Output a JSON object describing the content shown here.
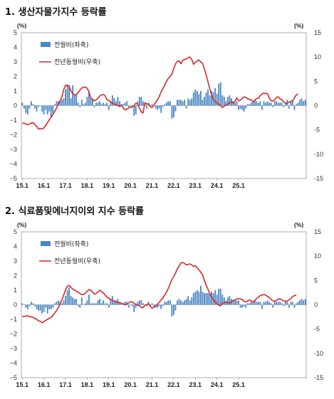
{
  "chart_data": [
    {
      "type": "bar+line",
      "title": "1. 생산자물가지수 등락률",
      "left_unit": "(%)",
      "right_unit": "(%)",
      "left_axis": {
        "ylim": [
          -5,
          5
        ],
        "ticks": [
          "5",
          "4",
          "3",
          "2",
          "1",
          "0",
          "−1",
          "−2",
          "−3",
          "−4",
          "−5"
        ]
      },
      "right_axis": {
        "ylim": [
          -15,
          15
        ],
        "ticks": [
          "15",
          "10",
          "5",
          "0",
          "-5",
          "-10",
          "-15"
        ]
      },
      "x_ticks": [
        "15.1",
        "16.1",
        "17.1",
        "18.1",
        "19.1",
        "20.1",
        "21.1",
        "22.1",
        "23.1",
        "24.1",
        "25.1"
      ],
      "series": [
        {
          "name": "전월비(좌축)",
          "type": "bar",
          "axis": "left",
          "color": "#4a86c5",
          "values": [
            0.2,
            -0.2,
            -0.5,
            -0.6,
            -0.2,
            0.3,
            0.1,
            -0.2,
            -0.4,
            -0.1,
            0.0,
            -0.4,
            -0.6,
            -0.3,
            -0.6,
            -0.4,
            -0.8,
            -0.5,
            0.1,
            0.3,
            0.3,
            0.3,
            0.4,
            0.5,
            1.1,
            1.4,
            1.4,
            0.5,
            1.4,
            0.7,
            0.8,
            0.2,
            -0.1,
            0.4,
            0.1,
            0.2,
            0.6,
            1.0,
            0.5,
            0.4,
            -0.1,
            0.2,
            0.2,
            0.3,
            0.1,
            0.2,
            0.1,
            0.2,
            -0.3,
            0.3,
            0.7,
            0.5,
            0.3,
            0.6,
            0.3,
            0.1,
            0.1,
            0.2,
            0.3,
            -0.1,
            0.0,
            -0.1,
            -0.7,
            -0.6,
            0.3,
            0.6,
            0.6,
            0.3,
            0.1,
            -0.2,
            0.2,
            -0.1,
            0.1,
            0.0,
            -0.2,
            -0.3,
            -0.2,
            -0.5,
            -0.1,
            0.1,
            0.2,
            0.3,
            0.3,
            -0.9,
            -0.8,
            -0.4,
            0.4,
            0.4,
            0.4,
            0.3,
            0.4,
            -0.2,
            0.5,
            0.4,
            0.5,
            0.9,
            1.1,
            1.0,
            0.8,
            1.0,
            0.4,
            0.6,
            0.9,
            1.1,
            0.7,
            1.0,
            0.9,
            1.2,
            0.8,
            1.5,
            1.6,
            0.7,
            0.6,
            0.3,
            0.6,
            0.7,
            0.5,
            0.3,
            0.2,
            0.3,
            -0.3,
            -0.2,
            -0.3,
            -0.4,
            -0.2,
            0.1,
            0.1,
            0.2,
            0.3,
            0.4,
            0.3,
            0.2,
            0.3,
            -0.3,
            0.3,
            0.2,
            0.3,
            0.2,
            0.2,
            -0.1,
            0.3,
            0.3,
            0.2,
            0.2,
            0.2,
            -0.1,
            0.2,
            0.4,
            -0.2,
            0.3,
            0.3,
            -0.3,
            0.1,
            0.2,
            0.4,
            0.5,
            0.3,
            0.4
          ]
        },
        {
          "name": "전년동월비(우축)",
          "type": "line",
          "axis": "right",
          "color": "#d62828",
          "values": [
            -3.6,
            -3.6,
            -3.8,
            -3.9,
            -3.8,
            -3.6,
            -3.5,
            -3.9,
            -4.3,
            -4.8,
            -4.7,
            -4.8,
            -4.6,
            -4.1,
            -3.5,
            -2.9,
            -2.4,
            -1.8,
            -1.2,
            -0.5,
            0.3,
            1.0,
            1.8,
            3.3,
            4.2,
            4.2,
            4.0,
            3.0,
            2.5,
            2.2,
            2.3,
            2.7,
            3.2,
            3.6,
            3.8,
            3.8,
            3.6,
            2.8,
            1.6,
            1.3,
            1.0,
            1.2,
            1.5,
            2.0,
            2.2,
            2.3,
            2.0,
            1.2,
            1.1,
            0.8,
            0.5,
            0.3,
            0.2,
            0.0,
            -0.2,
            0.1,
            -0.5,
            -0.9,
            -0.7,
            -0.5,
            -0.3,
            -0.3,
            0.0,
            0.5,
            0.3,
            -0.5,
            -1.3,
            -1.5,
            0.6,
            0.3,
            0.4,
            -0.2,
            -0.4,
            0.1,
            0.6,
            1.2,
            1.9,
            2.8,
            3.5,
            4.2,
            5.0,
            5.6,
            6.0,
            6.5,
            7.6,
            8.6,
            9.1,
            9.2,
            8.6,
            9.3,
            9.5,
            9.6,
            9.9,
            10.0,
            9.5,
            8.5,
            8.9,
            9.2,
            9.4,
            9.0,
            8.7,
            7.6,
            6.3,
            4.9,
            3.5,
            2.2,
            1.2,
            0.9,
            0.5,
            0.3,
            0.0,
            -0.4,
            -0.1,
            0.1,
            0.3,
            0.6,
            0.8,
            0.5,
            0.9,
            1.6,
            1.0,
            1.1,
            1.5,
            1.8,
            1.7,
            1.4,
            1.3,
            1.2,
            0.8,
            1.1,
            1.5,
            1.5,
            2.1,
            2.4,
            2.6,
            2.5,
            2.5,
            1.6,
            1.0,
            0.9,
            1.2,
            1.7,
            1.8,
            1.4,
            1.2,
            0.8,
            0.5,
            0.5,
            0.7,
            0.9,
            1.0,
            1.6,
            2.2,
            2.4
          ]
        }
      ],
      "legend": [
        "전월비(좌축)",
        "전년동월비(우축)"
      ],
      "legend_position": "top-left"
    },
    {
      "type": "bar+line",
      "title": "2. 식료품및에너지이외 지수 등락률",
      "left_unit": "(%)",
      "right_unit": "(%)",
      "left_axis": {
        "ylim": [
          -5,
          5
        ],
        "ticks": [
          "5",
          "4",
          "3",
          "2",
          "1",
          "0",
          "−1",
          "−2",
          "−3",
          "−4",
          "−5"
        ]
      },
      "right_axis": {
        "ylim": [
          -15,
          15
        ],
        "ticks": [
          "15",
          "10",
          "5",
          "0",
          "-5",
          "-10",
          "-15"
        ]
      },
      "x_ticks": [
        "15.1",
        "16.1",
        "17.1",
        "18.1",
        "19.1",
        "20.1",
        "21.1",
        "22.1",
        "23.1",
        "24.1",
        "25.1"
      ],
      "series": [
        {
          "name": "전월비(좌축)",
          "type": "bar",
          "axis": "left",
          "color": "#4a86c5",
          "values": [
            0.1,
            0.0,
            -0.2,
            -0.3,
            -0.1,
            0.2,
            0.1,
            -0.1,
            -0.3,
            -0.4,
            -0.4,
            -0.6,
            -0.5,
            -0.2,
            -0.6,
            -0.3,
            -0.3,
            -0.2,
            0.1,
            0.2,
            0.3,
            0.2,
            0.1,
            0.3,
            0.6,
            1.0,
            1.2,
            0.6,
            0.5,
            0.4,
            0.4,
            -0.1,
            -0.2,
            0.5,
            0.0,
            0.1,
            0.3,
            0.7,
            0.1,
            0.1,
            0.1,
            0.1,
            0.3,
            0.4,
            0.1,
            0.3,
            0.1,
            0.1,
            -0.2,
            0.4,
            0.6,
            0.3,
            0.3,
            0.4,
            0.2,
            0.1,
            0.1,
            0.2,
            0.2,
            -0.2,
            0.0,
            -0.1,
            -0.5,
            -0.2,
            0.2,
            0.3,
            0.3,
            0.1,
            0.0,
            -0.1,
            0.2,
            -0.1,
            0.1,
            -0.1,
            -0.2,
            -0.2,
            -0.1,
            -0.3,
            -0.1,
            0.2,
            0.2,
            0.3,
            0.3,
            -0.8,
            -0.7,
            -0.4,
            0.3,
            0.4,
            0.3,
            0.2,
            0.3,
            0.4,
            0.6,
            0.3,
            0.5,
            0.8,
            0.9,
            1.0,
            0.9,
            1.3,
            0.9,
            0.8,
            0.8,
            0.8,
            0.8,
            0.9,
            0.8,
            1.0,
            0.7,
            1.1,
            1.1,
            0.7,
            0.5,
            0.3,
            0.5,
            0.6,
            0.4,
            0.3,
            0.3,
            0.3,
            0.3,
            -0.2,
            -0.2,
            -0.1,
            -0.2,
            0.1,
            0.1,
            0.2,
            0.2,
            0.3,
            0.2,
            0.2,
            0.2,
            -0.3,
            0.2,
            0.2,
            0.3,
            0.2,
            0.1,
            -0.2,
            0.2,
            0.2,
            0.2,
            0.2,
            0.1,
            -0.1,
            0.2,
            0.2,
            -0.2,
            0.2,
            0.2,
            -0.2,
            0.1,
            0.2,
            0.3,
            0.4,
            0.3,
            0.4
          ]
        },
        {
          "name": "전년동월비(우축)",
          "type": "line",
          "axis": "right",
          "color": "#d62828",
          "values": [
            -2.4,
            -2.4,
            -2.3,
            -2.3,
            -2.4,
            -2.5,
            -2.6,
            -2.8,
            -3.0,
            -3.3,
            -3.4,
            -3.7,
            -3.5,
            -3.2,
            -3.0,
            -2.8,
            -2.6,
            -2.2,
            -1.7,
            -1.2,
            -0.6,
            0.2,
            1.0,
            2.0,
            3.1,
            3.8,
            4.0,
            3.6,
            3.2,
            3.0,
            2.8,
            2.6,
            2.3,
            2.1,
            2.1,
            2.4,
            2.8,
            3.1,
            3.0,
            2.6,
            2.2,
            2.3,
            2.7,
            3.0,
            2.7,
            2.4,
            2.0,
            1.6,
            1.3,
            1.1,
            0.9,
            0.8,
            0.6,
            0.4,
            0.5,
            0.3,
            0.2,
            0.0,
            0.1,
            0.4,
            0.6,
            0.6,
            0.3,
            0.1,
            -0.1,
            -0.2,
            -0.5,
            -0.6,
            -0.1,
            0.0,
            0.2,
            -0.3,
            -0.7,
            -0.5,
            -0.2,
            0.1,
            0.5,
            1.0,
            1.4,
            2.0,
            2.6,
            3.4,
            4.3,
            5.2,
            5.8,
            6.5,
            7.4,
            8.0,
            8.6,
            8.7,
            8.5,
            8.2,
            8.3,
            8.4,
            8.2,
            7.9,
            8.0,
            7.6,
            7.2,
            6.7,
            6.2,
            5.0,
            4.0,
            3.2,
            2.3,
            1.6,
            1.0,
            0.6,
            0.2,
            -0.1,
            -0.2,
            0.3,
            0.5,
            0.4,
            0.5,
            0.3,
            0.6,
            0.9,
            1.0,
            1.2,
            1.3,
            1.2,
            1.1,
            0.7,
            0.6,
            0.8,
            1.0,
            0.8,
            0.6,
            0.9,
            1.3,
            1.6,
            1.9,
            2.0,
            2.1,
            2.0,
            1.7,
            1.5,
            1.1,
            0.8,
            0.7,
            0.9,
            1.2,
            1.2,
            1.0,
            0.8,
            0.7,
            0.8,
            1.0,
            1.3,
            1.7,
            1.9,
            2.0
          ]
        }
      ],
      "legend": [
        "전월비(좌축)",
        "전년동월비(우축)"
      ],
      "legend_position": "top-left"
    }
  ]
}
